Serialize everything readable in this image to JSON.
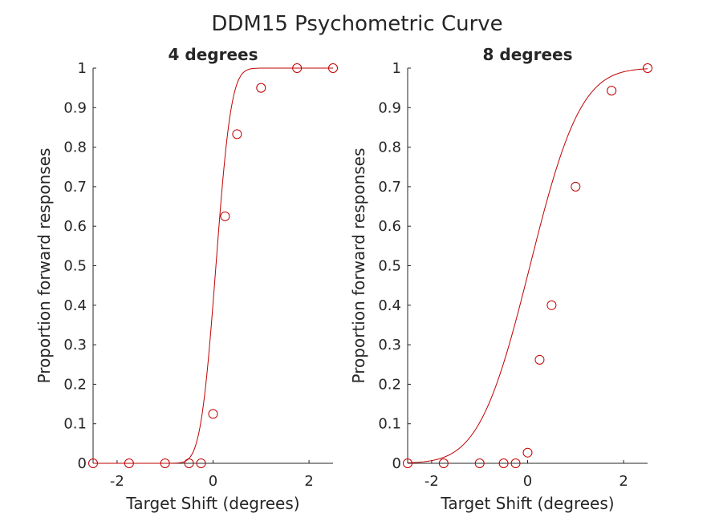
{
  "figure": {
    "title": "DDM15 Psychometric Curve"
  },
  "chart_data": [
    {
      "type": "scatter",
      "title": "4 degrees",
      "xlabel": "Target Shift (degrees)",
      "ylabel": "Proportion forward responses",
      "xlim": [
        -2.5,
        2.5
      ],
      "ylim": [
        0,
        1
      ],
      "xticks": [
        "-2",
        "0",
        "2"
      ],
      "yticks": [
        "0",
        "0.1",
        "0.2",
        "0.3",
        "0.4",
        "0.5",
        "0.6",
        "0.7",
        "0.8",
        "0.9",
        "1"
      ],
      "grid": false,
      "color": "#c00000",
      "series": [
        {
          "kind": "markers",
          "marker": "circle",
          "x": [
            -2.5,
            -1.75,
            -1.0,
            -0.5,
            -0.25,
            0.0,
            0.25,
            0.5,
            1.0,
            1.75,
            2.5
          ],
          "y": [
            0.0,
            0.0,
            0.0,
            0.0,
            0.0,
            0.125,
            0.625,
            0.833,
            0.95,
            1.0,
            1.0
          ]
        },
        {
          "kind": "fit-line",
          "mu": 0.06,
          "sigma": 0.25
        }
      ]
    },
    {
      "type": "scatter",
      "title": "8 degrees",
      "xlabel": "Target Shift (degrees)",
      "ylabel": "Proportion forward responses",
      "xlim": [
        -2.5,
        2.5
      ],
      "ylim": [
        0,
        1
      ],
      "xticks": [
        "-2",
        "0",
        "2"
      ],
      "yticks": [
        "0",
        "0.1",
        "0.2",
        "0.3",
        "0.4",
        "0.5",
        "0.6",
        "0.7",
        "0.8",
        "0.9",
        "1"
      ],
      "grid": false,
      "color": "#c00000",
      "series": [
        {
          "kind": "markers",
          "marker": "circle",
          "x": [
            -2.5,
            -1.75,
            -1.0,
            -0.5,
            -0.25,
            0.0,
            0.25,
            0.5,
            1.0,
            1.75,
            2.5
          ],
          "y": [
            0.0,
            0.0,
            0.0,
            0.0,
            0.0,
            0.027,
            0.262,
            0.4,
            0.7,
            0.943,
            1.0
          ]
        },
        {
          "kind": "fit-line",
          "mu": 0.05,
          "sigma": 0.83
        }
      ]
    }
  ]
}
